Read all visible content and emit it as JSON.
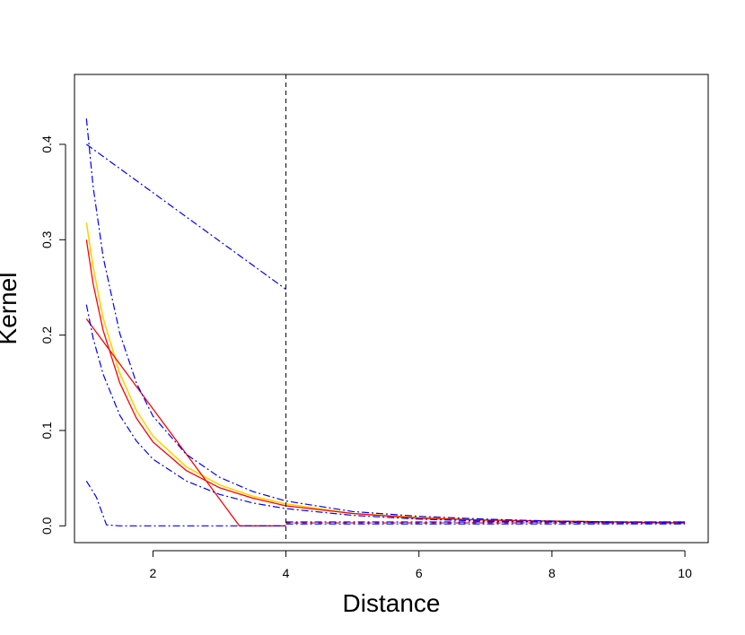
{
  "chart_data": {
    "type": "line",
    "title": "",
    "xlabel": "Distance",
    "ylabel": "Kernel",
    "xlim": [
      0.82,
      10.35
    ],
    "ylim": [
      -0.0176,
      0.4733
    ],
    "x_ticks": [
      2,
      4,
      6,
      8,
      10
    ],
    "x_tick_labels": [
      "2",
      "4",
      "6",
      "8",
      "10"
    ],
    "y_ticks": [
      0.0,
      0.1,
      0.2,
      0.3,
      0.4
    ],
    "y_tick_labels": [
      "0.0",
      "0.1",
      "0.2",
      "0.3",
      "0.4"
    ],
    "grid": false,
    "legend": "none",
    "vertical_line": {
      "x": 4,
      "style": "dashed",
      "color": "#000000"
    },
    "series": [
      {
        "style": "solid",
        "color": "#ffd400",
        "width": 1.6,
        "points": [
          [
            1,
            0.318
          ],
          [
            1.1,
            0.272
          ],
          [
            1.25,
            0.218
          ],
          [
            1.5,
            0.16
          ],
          [
            1.75,
            0.121
          ],
          [
            2,
            0.094
          ],
          [
            2.5,
            0.062
          ],
          [
            3,
            0.043
          ],
          [
            3.5,
            0.031
          ],
          [
            4,
            0.023
          ],
          [
            5,
            0.013
          ],
          [
            6,
            0.009
          ],
          [
            7,
            0.006
          ],
          [
            8,
            0.005
          ],
          [
            9,
            0.004
          ],
          [
            10,
            0.003
          ]
        ]
      },
      {
        "style": "solid",
        "color": "#ff0000",
        "width": 1.3,
        "points": [
          [
            1,
            0.3
          ],
          [
            1.1,
            0.254
          ],
          [
            1.25,
            0.205
          ],
          [
            1.5,
            0.15
          ],
          [
            1.75,
            0.113
          ],
          [
            2,
            0.088
          ],
          [
            2.5,
            0.058
          ],
          [
            3,
            0.04
          ],
          [
            3.5,
            0.029
          ],
          [
            4,
            0.021
          ],
          [
            5,
            0.013
          ],
          [
            6,
            0.008
          ],
          [
            7,
            0.006
          ],
          [
            8,
            0.005
          ],
          [
            9,
            0.004
          ],
          [
            10,
            0.003
          ]
        ]
      },
      {
        "style": "solid",
        "color": "#ff0000",
        "width": 1.3,
        "points": [
          [
            1,
            0.217
          ],
          [
            3.3,
            0.0
          ],
          [
            4,
            0.0
          ]
        ]
      },
      {
        "style": "dashdot",
        "color": "#0000ff",
        "width": 1.2,
        "points": [
          [
            1,
            0.4
          ],
          [
            4,
            0.248
          ]
        ]
      },
      {
        "style": "dashdot",
        "color": "#0000ff",
        "width": 1.2,
        "points": [
          [
            1,
            0.427
          ],
          [
            1.1,
            0.356
          ],
          [
            1.25,
            0.282
          ],
          [
            1.5,
            0.202
          ],
          [
            1.75,
            0.15
          ],
          [
            2,
            0.115
          ],
          [
            2.5,
            0.075
          ],
          [
            3,
            0.051
          ],
          [
            3.5,
            0.036
          ],
          [
            4,
            0.026
          ],
          [
            5,
            0.015
          ],
          [
            6,
            0.01
          ],
          [
            7,
            0.007
          ],
          [
            8,
            0.005
          ],
          [
            9,
            0.004
          ],
          [
            10,
            0.004
          ]
        ]
      },
      {
        "style": "dashdot",
        "color": "#0000ff",
        "width": 1.2,
        "points": [
          [
            1,
            0.232
          ],
          [
            1.1,
            0.197
          ],
          [
            1.25,
            0.159
          ],
          [
            1.5,
            0.116
          ],
          [
            1.75,
            0.089
          ],
          [
            2,
            0.07
          ],
          [
            2.5,
            0.047
          ],
          [
            3,
            0.033
          ],
          [
            3.5,
            0.024
          ],
          [
            4,
            0.018
          ],
          [
            5,
            0.011
          ],
          [
            6,
            0.007
          ],
          [
            7,
            0.005
          ],
          [
            8,
            0.004
          ],
          [
            9,
            0.003
          ],
          [
            10,
            0.003
          ]
        ]
      },
      {
        "style": "dashdot",
        "color": "#0000ff",
        "width": 1.2,
        "points": [
          [
            1,
            0.047
          ],
          [
            1.15,
            0.03
          ],
          [
            1.3,
            0.001
          ],
          [
            1.5,
            0.0
          ],
          [
            4,
            0.0
          ]
        ]
      },
      {
        "style": "dashdot",
        "color": "#0000ff",
        "width": 1.2,
        "points": [
          [
            4,
            0.004
          ],
          [
            10,
            0.004
          ]
        ]
      },
      {
        "style": "dashed",
        "color": "#ff0000",
        "width": 1.1,
        "points": [
          [
            4,
            0.003
          ],
          [
            10,
            0.003
          ]
        ]
      },
      {
        "style": "dashdot",
        "color": "#0000ff",
        "width": 1.2,
        "points": [
          [
            4,
            0.002
          ],
          [
            10,
            0.002
          ]
        ]
      }
    ]
  }
}
